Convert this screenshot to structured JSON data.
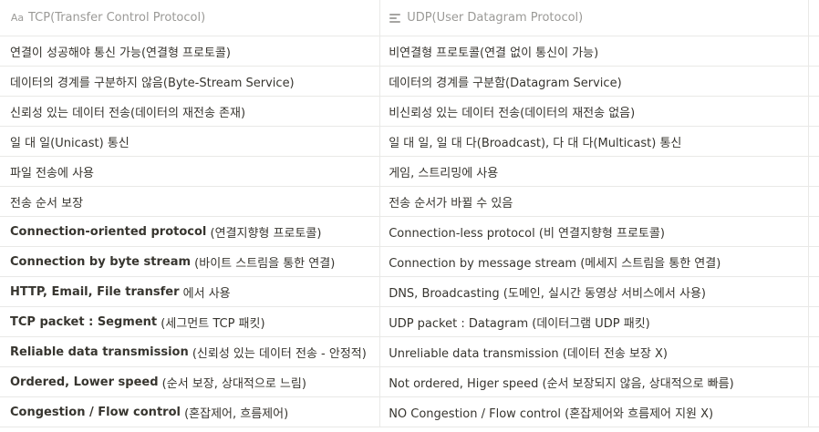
{
  "columns": {
    "tcp": {
      "icon": "text-property-icon",
      "icon_glyph": "Aa",
      "label": "TCP(Transfer Control Protocol)"
    },
    "udp": {
      "icon": "text-lines-icon",
      "label": "UDP(User Datagram Protocol)"
    }
  },
  "rows": [
    {
      "tcp_bold": "",
      "tcp_rest": "연결이 성공해야 통신 가능(연결형 프로토콜)",
      "udp": "비연결형 프로토콜(연결 없이 통신이 가능)"
    },
    {
      "tcp_bold": "",
      "tcp_rest": "데이터의 경계를 구분하지 않음(Byte-Stream Service)",
      "udp": "데이터의 경계를 구분함(Datagram Service)"
    },
    {
      "tcp_bold": "",
      "tcp_rest": "신뢰성 있는 데이터 전송(데이터의 재전송 존재)",
      "udp": "비신뢰성 있는 데이터 전송(데이터의 재전송 없음)"
    },
    {
      "tcp_bold": "",
      "tcp_rest": "일 대 일(Unicast) 통신",
      "udp": "일 대 일, 일 대 다(Broadcast), 다 대 다(Multicast) 통신"
    },
    {
      "tcp_bold": "",
      "tcp_rest": "파일 전송에 사용",
      "udp": "게임, 스트리밍에 사용"
    },
    {
      "tcp_bold": "",
      "tcp_rest": "전송 순서 보장",
      "udp": "전송 순서가 바뀔 수 있음"
    },
    {
      "tcp_bold": "Connection-oriented protocol",
      "tcp_rest": " (연결지향형 프로토콜)",
      "udp": "Connection-less protocol (비 연결지향형 프로토콜)"
    },
    {
      "tcp_bold": "Connection by byte stream",
      "tcp_rest": " (바이트 스트림을 통한 연결)",
      "udp": "Connection by message stream (메세지 스트림을 통한 연결)"
    },
    {
      "tcp_bold": "HTTP, Email, File transfer",
      "tcp_rest": " 에서 사용",
      "udp": "DNS, Broadcasting (도메인, 실시간 동영상 서비스에서 사용)"
    },
    {
      "tcp_bold": "TCP packet : Segment",
      "tcp_rest": " (세그먼트 TCP 패킷)",
      "udp": "UDP packet : Datagram (데이터그램 UDP 패킷)"
    },
    {
      "tcp_bold": "Reliable data transmission",
      "tcp_rest": " (신뢰성 있는 데이터 전송 - 안정적)",
      "udp": "Unreliable data transmission (데이터 전송 보장 X)"
    },
    {
      "tcp_bold": "Ordered, Lower speed",
      "tcp_rest": " (순서 보장, 상대적으로 느림)",
      "udp": "Not ordered, Higer speed (순서 보장되지 않음, 상대적으로 빠름)"
    },
    {
      "tcp_bold": "Congestion / Flow control",
      "tcp_rest": " (혼잡제어, 흐름제어)",
      "udp": "NO Congestion / Flow control (혼잡제어와 흐름제어 지원 X)"
    }
  ],
  "colors": {
    "text": "#37352f",
    "header_text": "#9b9a97",
    "border": "#e9e9e7"
  }
}
